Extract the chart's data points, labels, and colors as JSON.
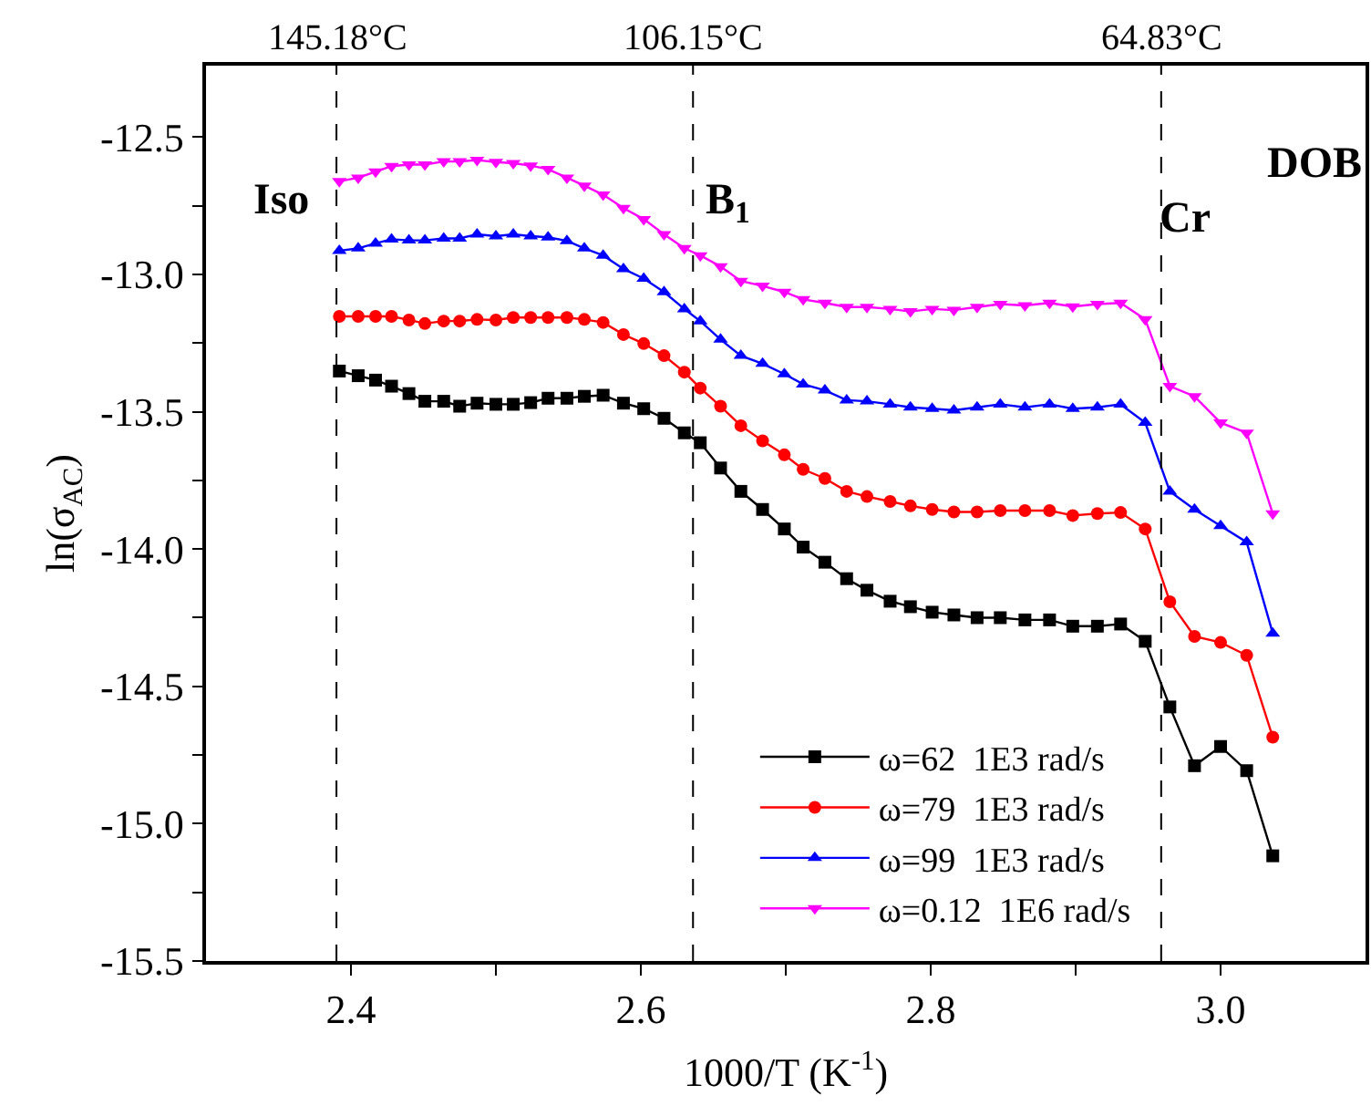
{
  "chart_data": {
    "type": "line",
    "xlabel": "1000/T (K$^{-1}$)",
    "ylabel": "ln(σ$_{AC}$)",
    "annotations": [
      "Iso",
      "B$_{1}$",
      "Cr",
      "DOB"
    ],
    "x": [
      2.392,
      2.405,
      2.417,
      2.428,
      2.44,
      2.451,
      2.464,
      2.475,
      2.487,
      2.5,
      2.512,
      2.524,
      2.536,
      2.549,
      2.561,
      2.574,
      2.588,
      2.602,
      2.616,
      2.63,
      2.641,
      2.655,
      2.669,
      2.684,
      2.699,
      2.712,
      2.727,
      2.742,
      2.756,
      2.772,
      2.786,
      2.801,
      2.816,
      2.832,
      2.848,
      2.865,
      2.882,
      2.898,
      2.915,
      2.931,
      2.948,
      2.965,
      2.982,
      3.0,
      3.018,
      3.036
    ],
    "series": [
      {
        "name": "ω=62  1E3 rad/s",
        "color": "#000000",
        "marker": "square",
        "values": [
          -13.352,
          -13.369,
          -13.385,
          -13.407,
          -13.434,
          -13.462,
          -13.462,
          -13.48,
          -13.469,
          -13.473,
          -13.473,
          -13.467,
          -13.451,
          -13.451,
          -13.444,
          -13.44,
          -13.469,
          -13.489,
          -13.524,
          -13.577,
          -13.613,
          -13.705,
          -13.79,
          -13.856,
          -13.927,
          -13.993,
          -14.048,
          -14.108,
          -14.15,
          -14.19,
          -14.21,
          -14.23,
          -14.24,
          -14.25,
          -14.25,
          -14.258,
          -14.258,
          -14.281,
          -14.281,
          -14.273,
          -14.336,
          -14.575,
          -14.789,
          -14.719,
          -14.807,
          -15.117
        ]
      },
      {
        "name": "ω=79  1E3 rad/s",
        "color": "#ff0000",
        "marker": "circle",
        "values": [
          -13.153,
          -13.153,
          -13.153,
          -13.153,
          -13.166,
          -13.179,
          -13.17,
          -13.17,
          -13.164,
          -13.166,
          -13.157,
          -13.157,
          -13.157,
          -13.157,
          -13.164,
          -13.175,
          -13.219,
          -13.252,
          -13.296,
          -13.356,
          -13.414,
          -13.48,
          -13.551,
          -13.606,
          -13.657,
          -13.71,
          -13.743,
          -13.79,
          -13.809,
          -13.827,
          -13.843,
          -13.856,
          -13.865,
          -13.865,
          -13.86,
          -13.86,
          -13.86,
          -13.878,
          -13.871,
          -13.867,
          -13.927,
          -14.192,
          -14.318,
          -14.34,
          -14.387,
          -14.685
        ]
      },
      {
        "name": "ω=99  1E3 rad/s",
        "color": "#0000ff",
        "marker": "triangle",
        "values": [
          -12.914,
          -12.905,
          -12.887,
          -12.872,
          -12.876,
          -12.876,
          -12.869,
          -12.869,
          -12.854,
          -12.861,
          -12.854,
          -12.861,
          -12.865,
          -12.878,
          -12.905,
          -12.931,
          -12.98,
          -13.015,
          -13.064,
          -13.126,
          -13.17,
          -13.237,
          -13.296,
          -13.325,
          -13.363,
          -13.4,
          -13.422,
          -13.458,
          -13.462,
          -13.473,
          -13.484,
          -13.489,
          -13.495,
          -13.484,
          -13.473,
          -13.484,
          -13.473,
          -13.489,
          -13.484,
          -13.473,
          -13.54,
          -13.79,
          -13.856,
          -13.916,
          -13.975,
          -14.307
        ]
      },
      {
        "name": "ω=0.12  1E6 rad/s",
        "color": "#ff00ff",
        "marker": "triangle-down",
        "values": [
          -12.661,
          -12.648,
          -12.626,
          -12.606,
          -12.6,
          -12.6,
          -12.589,
          -12.589,
          -12.584,
          -12.591,
          -12.595,
          -12.604,
          -12.617,
          -12.648,
          -12.677,
          -12.71,
          -12.759,
          -12.799,
          -12.854,
          -12.905,
          -12.931,
          -12.971,
          -13.024,
          -13.042,
          -13.064,
          -13.091,
          -13.104,
          -13.119,
          -13.119,
          -13.126,
          -13.135,
          -13.126,
          -13.13,
          -13.119,
          -13.108,
          -13.113,
          -13.104,
          -13.117,
          -13.108,
          -13.104,
          -13.164,
          -13.407,
          -13.444,
          -13.54,
          -13.577,
          -13.871
        ]
      }
    ],
    "xlim": [
      2.3,
      3.1
    ],
    "xticks": [
      2.4,
      {
        "value": 2.5,
        "label": null
      },
      2.6,
      {
        "value": 2.7,
        "label": null
      },
      2.8,
      {
        "value": 2.9,
        "label": null
      },
      {
        "value": 3.0,
        "label": "3.0"
      }
    ],
    "ylim": [
      -15.5,
      -12.24
    ],
    "yticks": [
      -15.5,
      {
        "value": -15.25,
        "label": null
      },
      {
        "value": -15.0,
        "label": "-15.0"
      },
      {
        "value": -14.75,
        "label": null
      },
      -14.5,
      {
        "value": -14.25,
        "label": null
      },
      {
        "value": -14.0,
        "label": "-14.0"
      },
      {
        "value": -13.75,
        "label": null
      },
      -13.5,
      {
        "value": -13.25,
        "label": null
      },
      {
        "value": -13.0,
        "label": "-13.0"
      },
      {
        "value": -12.75,
        "label": null
      },
      -12.5
    ],
    "ref_lines": [
      {
        "axis": "x",
        "value": 2.39,
        "label": "145.18°C",
        "color": "#000000",
        "line_style": "dashed"
      },
      {
        "axis": "x",
        "value": 2.636,
        "label": "106.15°C",
        "color": "#000000",
        "line_style": "dashed"
      },
      {
        "axis": "x",
        "value": 2.959,
        "label": "64.83°C",
        "color": "#000000",
        "line_style": "dashed"
      }
    ],
    "line_style": "solid",
    "legend": "bottom right"
  }
}
